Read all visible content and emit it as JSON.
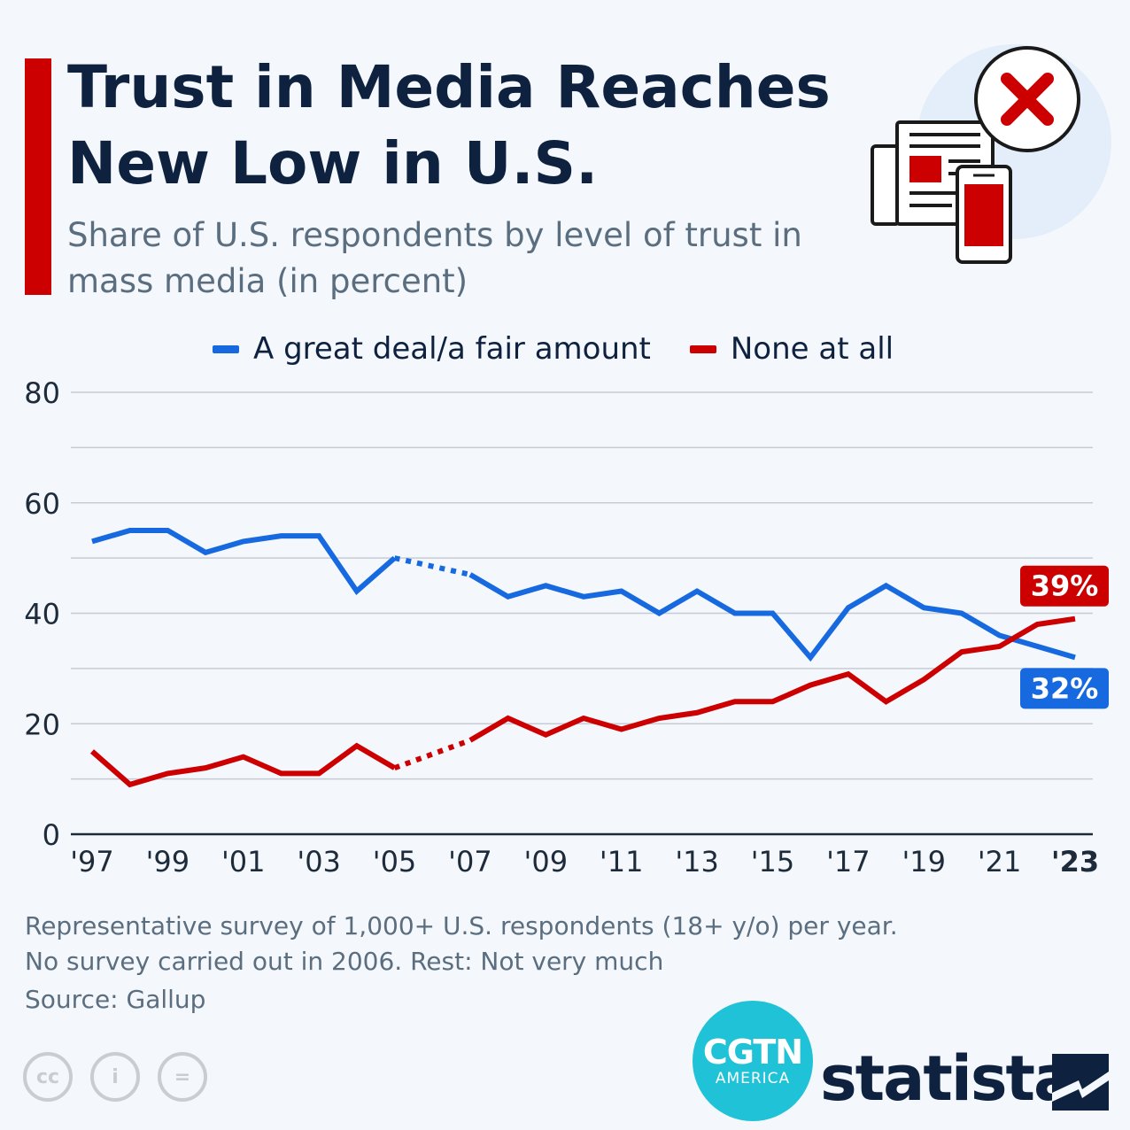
{
  "header": {
    "title": "Trust in Media Reaches New Low in U.S.",
    "subtitle": "Share of U.S. respondents by level of trust in mass media (in percent)"
  },
  "legend": [
    {
      "label": "A great deal/a fair amount",
      "color": "#1769e0"
    },
    {
      "label": "None at all",
      "color": "#cc0000"
    }
  ],
  "chart_data": {
    "type": "line",
    "title": "Trust in Media Reaches New Low in U.S.",
    "xlabel": "",
    "ylabel": "",
    "ylim": [
      0,
      80
    ],
    "yticks": [
      "0",
      "20",
      "40",
      "60",
      "80"
    ],
    "x": [
      1997,
      1998,
      1999,
      2000,
      2001,
      2002,
      2003,
      2004,
      2005,
      2007,
      2008,
      2009,
      2010,
      2011,
      2012,
      2013,
      2014,
      2015,
      2016,
      2017,
      2018,
      2019,
      2020,
      2021,
      2022,
      2023
    ],
    "xticks": [
      "'97",
      "'99",
      "'01",
      "'03",
      "'05",
      "'07",
      "'09",
      "'11",
      "'13",
      "'15",
      "'17",
      "'19",
      "'21",
      "'23"
    ],
    "gap": {
      "missing_year": 2006,
      "between": [
        2005,
        2007
      ],
      "style": "dotted"
    },
    "series": [
      {
        "name": "A great deal/a fair amount",
        "color": "#1769e0",
        "values": [
          53,
          55,
          55,
          51,
          53,
          54,
          54,
          44,
          50,
          47,
          43,
          45,
          43,
          44,
          40,
          44,
          40,
          40,
          32,
          41,
          45,
          41,
          40,
          36,
          34,
          32
        ],
        "end_label": "32%"
      },
      {
        "name": "None at all",
        "color": "#cc0000",
        "values": [
          15,
          9,
          11,
          12,
          14,
          11,
          11,
          16,
          12,
          17,
          21,
          18,
          21,
          19,
          21,
          22,
          24,
          24,
          27,
          29,
          24,
          28,
          33,
          34,
          38,
          39
        ],
        "end_label": "39%"
      }
    ]
  },
  "footer": {
    "note_line1": "Representative survey of 1,000+ U.S. respondents  (18+ y/o) per year.",
    "note_line2": "No survey carried out in 2006. Rest: Not very much",
    "source": "Source: Gallup",
    "cgtn_main": "CGTN",
    "cgtn_sub": "AMERICA",
    "brand": "statista",
    "cc_labels": [
      "cc",
      "i",
      "="
    ]
  }
}
